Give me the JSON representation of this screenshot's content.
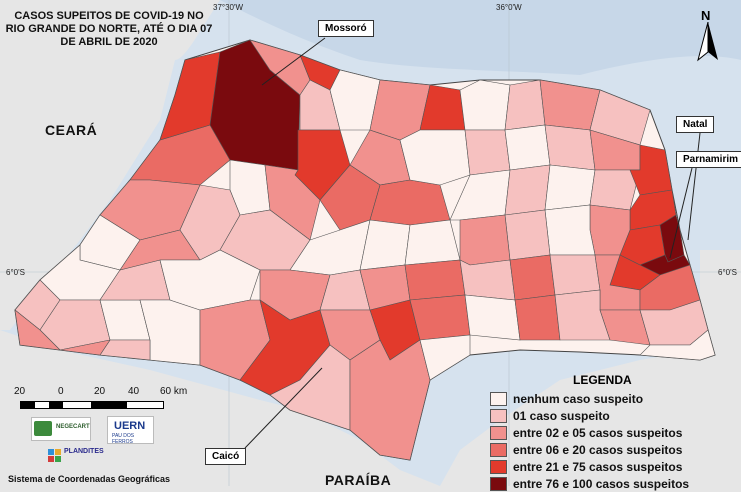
{
  "title": "CASOS SUPEITOS DE COVID-19 NO RIO GRANDE DO NORTE, ATÉ O DIA 07 DE ABRIL DE 2020",
  "callouts": {
    "mossoro": "Mossoró",
    "natal": "Natal",
    "parnamirim": "Parnamirim",
    "caico": "Caicó"
  },
  "neighbor_states": {
    "ceara": "CEARÁ",
    "paraiba": "PARAÍBA"
  },
  "coordinates": {
    "lon_left": "37°30'W",
    "lon_right": "36°0'W",
    "lat_left": "6°0'S",
    "lat_right": "6°0'S"
  },
  "north_arrow": {
    "label": "N",
    "icon": "north-arrow-icon"
  },
  "scale": {
    "ticks": [
      "20",
      "0",
      "20",
      "40",
      "60 km"
    ]
  },
  "logos": {
    "negecart": "NEGECART",
    "uern": "UERN",
    "uern_sub": "PAU DOS FERROS",
    "plandites": "PLANDITES"
  },
  "footer": "Sistema de Coordenadas Geográficas",
  "legend": {
    "title": "LEGENDA",
    "items": [
      {
        "label": "nenhum caso suspeito",
        "color": "#fdf2ee"
      },
      {
        "label": "01 caso suspeito",
        "color": "#f6c1c0"
      },
      {
        "label": "entre 02 e 05 casos suspeitos",
        "color": "#f1918e"
      },
      {
        "label": "entre 06 e 20 casos suspeitos",
        "color": "#ea6b64"
      },
      {
        "label": "entre 21 e 75 casos suspeitos",
        "color": "#e23a2c"
      },
      {
        "label": "entre 76 e 100 casos suspeitos",
        "color": "#7a0a0e"
      }
    ]
  },
  "colors": {
    "ocean": "#d6e2ee",
    "land": "#e9e9e9",
    "municipality_border": "#555555"
  }
}
